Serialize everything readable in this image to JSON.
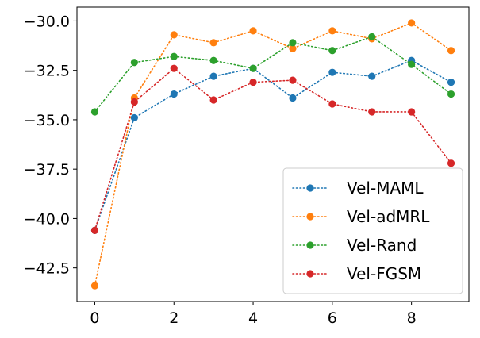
{
  "chart_data": {
    "type": "line",
    "title": "",
    "xlabel": "",
    "ylabel": "",
    "x": [
      0,
      1,
      2,
      3,
      4,
      5,
      6,
      7,
      8,
      9
    ],
    "xlim": [
      -0.45,
      9.45
    ],
    "ylim": [
      -44.2,
      -29.3
    ],
    "xticks": [
      0,
      2,
      4,
      6,
      8
    ],
    "yticks": [
      -30.0,
      -32.5,
      -35.0,
      -37.5,
      -40.0,
      -42.5
    ],
    "xtick_labels": [
      "0",
      "2",
      "4",
      "6",
      "8"
    ],
    "ytick_labels": [
      "−30.0",
      "−32.5",
      "−35.0",
      "−37.5",
      "−40.0",
      "−42.5"
    ],
    "grid": false,
    "legend_position": "bottom-right",
    "series": [
      {
        "name": "Vel-MAML",
        "color": "#1f77b4",
        "line_style": "dotted",
        "marker": "circle",
        "values": [
          -40.6,
          -34.9,
          -33.7,
          -32.8,
          -32.4,
          -33.9,
          -32.6,
          -32.8,
          -32.0,
          -33.1
        ]
      },
      {
        "name": "Vel-adMRL",
        "color": "#ff7f0e",
        "line_style": "dotted",
        "marker": "circle",
        "values": [
          -43.4,
          -33.9,
          -30.7,
          -31.1,
          -30.5,
          -31.4,
          -30.5,
          -30.9,
          -30.1,
          -31.5
        ]
      },
      {
        "name": "Vel-Rand",
        "color": "#2ca02c",
        "line_style": "dotted",
        "marker": "circle",
        "values": [
          -34.6,
          -32.1,
          -31.8,
          -32.0,
          -32.4,
          -31.1,
          -31.5,
          -30.8,
          -32.2,
          -33.7
        ]
      },
      {
        "name": "Vel-FGSM",
        "color": "#d62728",
        "line_style": "dotted",
        "marker": "circle",
        "values": [
          -40.6,
          -34.1,
          -32.4,
          -34.0,
          -33.1,
          -33.0,
          -34.2,
          -34.6,
          -34.6,
          -37.2
        ]
      }
    ]
  }
}
